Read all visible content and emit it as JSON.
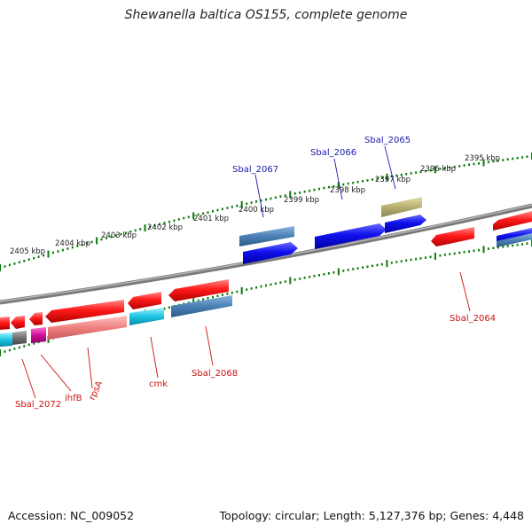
{
  "title": "Shewanella baltica OS155, complete genome",
  "footer": {
    "accession": "Accession: NC_009052",
    "summary": "Topology: circular; Length: 5,127,376 bp; Genes: 4,448"
  },
  "scale_labels": [
    "2405 kbp",
    "2404 kbp",
    "2403 kbp",
    "2402 kbp",
    "2401 kbp",
    "2400 kbp",
    "2399 kbp",
    "2398 kbp",
    "2397 kbp",
    "2396 kbp",
    "2395 kbp"
  ],
  "gene_labels": {
    "forward": [
      "Sbal_2067",
      "Sbal_2066",
      "Sbal_2065"
    ],
    "reverse": [
      "Sbal_2064",
      "Sbal_2068",
      "cmk",
      "rpsA",
      "ihfB",
      "Sbal_2072"
    ]
  },
  "colors": {
    "backbone": "#808080",
    "scale_ticks": "#0a7a0a",
    "forward_label": "#1a1aa8",
    "reverse_label": "#cc1111",
    "feature_red": "#ee1111",
    "feature_pink": "#f08080",
    "feature_blue": "#1010e0",
    "feature_steel": "#4a80b4",
    "feature_cyan": "#1ec4e4",
    "feature_khaki": "#b8b070",
    "feature_magenta": "#d0109a",
    "feature_gray": "#707070"
  }
}
